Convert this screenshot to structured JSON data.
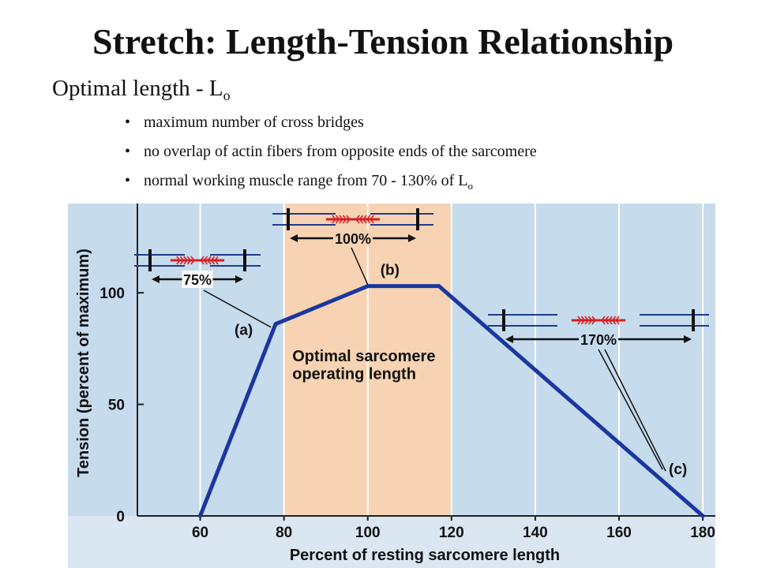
{
  "header": {
    "title": "Stretch: Length-Tension Relationship",
    "subtitle_main": "Optimal length - L",
    "subtitle_sub": "o"
  },
  "bullets": [
    {
      "text": "maximum number of cross bridges",
      "sub": ""
    },
    {
      "text": "no overlap of actin fibers from opposite ends of the sarcomere",
      "sub": ""
    },
    {
      "text": "normal working muscle range from 70 - 130% of L",
      "sub": "o"
    }
  ],
  "colors": {
    "background": "#c6dbec",
    "optimal_band": "#f7d3b3",
    "line": "#1a37a0",
    "actin": "#d81f25",
    "filament": "#1f3c8c"
  },
  "chart_data": {
    "type": "line",
    "xlabel": "Percent of resting sarcomere length",
    "ylabel": "Tension (percent of maximum)",
    "xlim": [
      45,
      183
    ],
    "ylim": [
      0,
      140
    ],
    "xticks": [
      60,
      80,
      100,
      120,
      140,
      160,
      180
    ],
    "yticks": [
      0,
      50,
      100
    ],
    "grid": true,
    "x": [
      60,
      78,
      100,
      117,
      180
    ],
    "y": [
      0,
      86,
      103,
      103,
      0
    ],
    "optimal_range": [
      80,
      120
    ],
    "region_label_line1": "Optimal sarcomere",
    "region_label_line2": "operating length",
    "annotations": [
      {
        "label": "(a)",
        "x": 78,
        "y": 86,
        "sarcomere": "75%"
      },
      {
        "label": "(b)",
        "x": 100,
        "y": 103,
        "sarcomere": "100%"
      },
      {
        "label": "(c)",
        "x": 170,
        "y": 18,
        "sarcomere": "170%"
      }
    ]
  }
}
